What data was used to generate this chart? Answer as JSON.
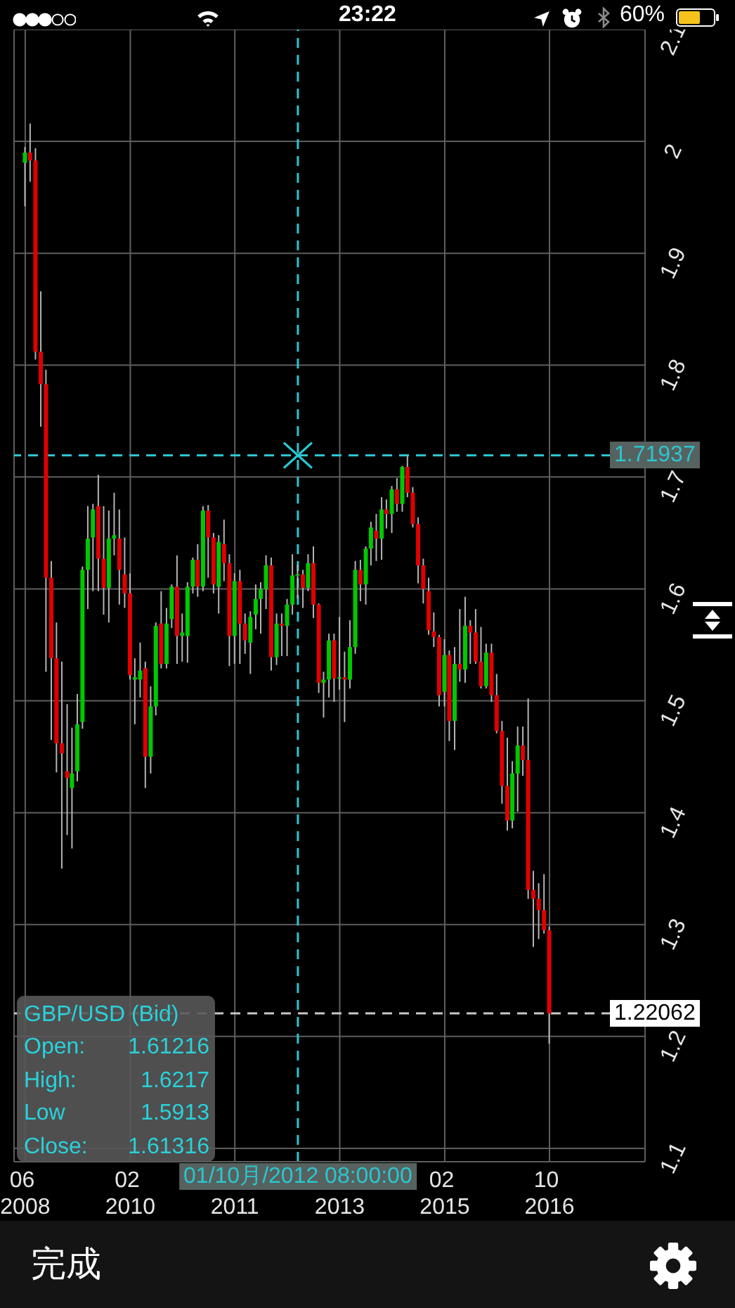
{
  "chart_data": {
    "type": "candlestick",
    "title": "GBP/USD (Bid)",
    "x": [
      "2008-06",
      "2008-07",
      "2008-08",
      "2008-09",
      "2008-10",
      "2008-11",
      "2008-12",
      "2009-01",
      "2009-02",
      "2009-03",
      "2009-04",
      "2009-05",
      "2009-06",
      "2009-07",
      "2009-08",
      "2009-09",
      "2009-10",
      "2009-11",
      "2009-12",
      "2010-01",
      "2010-02",
      "2010-03",
      "2010-04",
      "2010-05",
      "2010-06",
      "2010-07",
      "2010-08",
      "2010-09",
      "2010-10",
      "2010-11",
      "2010-12",
      "2011-01",
      "2011-02",
      "2011-03",
      "2011-04",
      "2011-05",
      "2011-06",
      "2011-07",
      "2011-08",
      "2011-09",
      "2011-10",
      "2011-11",
      "2011-12",
      "2012-01",
      "2012-02",
      "2012-03",
      "2012-04",
      "2012-05",
      "2012-06",
      "2012-07",
      "2012-08",
      "2012-09",
      "2012-10",
      "2012-11",
      "2012-12",
      "2013-01",
      "2013-02",
      "2013-03",
      "2013-04",
      "2013-05",
      "2013-06",
      "2013-07",
      "2013-08",
      "2013-09",
      "2013-10",
      "2013-11",
      "2013-12",
      "2014-01",
      "2014-02",
      "2014-03",
      "2014-04",
      "2014-05",
      "2014-06",
      "2014-07",
      "2014-08",
      "2014-09",
      "2014-10",
      "2014-11",
      "2014-12",
      "2015-01",
      "2015-02",
      "2015-03",
      "2015-04",
      "2015-05",
      "2015-06",
      "2015-07",
      "2015-08",
      "2015-09",
      "2015-10",
      "2015-11",
      "2015-12",
      "2016-01",
      "2016-02",
      "2016-03",
      "2016-04",
      "2016-05",
      "2016-06",
      "2016-07",
      "2016-08",
      "2016-09",
      "2016-10"
    ],
    "ohlc": [
      [
        1.981,
        1.995,
        1.942,
        1.99
      ],
      [
        1.99,
        2.016,
        1.964,
        1.983
      ],
      [
        1.983,
        1.994,
        1.805,
        1.812
      ],
      [
        1.812,
        1.866,
        1.745,
        1.783
      ],
      [
        1.783,
        1.796,
        1.526,
        1.61
      ],
      [
        1.61,
        1.625,
        1.465,
        1.538
      ],
      [
        1.538,
        1.57,
        1.436,
        1.462
      ],
      [
        1.462,
        1.535,
        1.35,
        1.453
      ],
      [
        1.437,
        1.497,
        1.38,
        1.431
      ],
      [
        1.422,
        1.476,
        1.368,
        1.435
      ],
      [
        1.437,
        1.506,
        1.428,
        1.479
      ],
      [
        1.481,
        1.62,
        1.475,
        1.617
      ],
      [
        1.617,
        1.674,
        1.582,
        1.645
      ],
      [
        1.646,
        1.676,
        1.598,
        1.671
      ],
      [
        1.674,
        1.702,
        1.598,
        1.627
      ],
      [
        1.627,
        1.674,
        1.577,
        1.601
      ],
      [
        1.601,
        1.67,
        1.57,
        1.645
      ],
      [
        1.645,
        1.686,
        1.63,
        1.648
      ],
      [
        1.645,
        1.671,
        1.586,
        1.617
      ],
      [
        1.613,
        1.646,
        1.583,
        1.596
      ],
      [
        1.596,
        1.614,
        1.519,
        1.523
      ],
      [
        1.519,
        1.538,
        1.479,
        1.521
      ],
      [
        1.519,
        1.552,
        1.503,
        1.527
      ],
      [
        1.529,
        1.535,
        1.422,
        1.45
      ],
      [
        1.45,
        1.513,
        1.435,
        1.495
      ],
      [
        1.495,
        1.57,
        1.487,
        1.567
      ],
      [
        1.569,
        1.598,
        1.529,
        1.533
      ],
      [
        1.533,
        1.583,
        1.529,
        1.569
      ],
      [
        1.573,
        1.604,
        1.565,
        1.602
      ],
      [
        1.602,
        1.63,
        1.533,
        1.558
      ],
      [
        1.558,
        1.578,
        1.535,
        1.561
      ],
      [
        1.558,
        1.606,
        1.534,
        1.602
      ],
      [
        1.602,
        1.628,
        1.596,
        1.626
      ],
      [
        1.626,
        1.64,
        1.593,
        1.602
      ],
      [
        1.602,
        1.674,
        1.598,
        1.67
      ],
      [
        1.67,
        1.675,
        1.61,
        1.646
      ],
      [
        1.646,
        1.65,
        1.596,
        1.604
      ],
      [
        1.602,
        1.648,
        1.578,
        1.642
      ],
      [
        1.64,
        1.662,
        1.607,
        1.623
      ],
      [
        1.623,
        1.631,
        1.531,
        1.558
      ],
      [
        1.558,
        1.614,
        1.533,
        1.607
      ],
      [
        1.607,
        1.617,
        1.533,
        1.569
      ],
      [
        1.569,
        1.578,
        1.542,
        1.554
      ],
      [
        1.552,
        1.58,
        1.524,
        1.575
      ],
      [
        1.577,
        1.604,
        1.564,
        1.591
      ],
      [
        1.591,
        1.606,
        1.56,
        1.6
      ],
      [
        1.6,
        1.63,
        1.582,
        1.621
      ],
      [
        1.621,
        1.628,
        1.527,
        1.539
      ],
      [
        1.539,
        1.578,
        1.532,
        1.569
      ],
      [
        1.569,
        1.578,
        1.54,
        1.567
      ],
      [
        1.567,
        1.591,
        1.54,
        1.586
      ],
      [
        1.586,
        1.631,
        1.577,
        1.612
      ],
      [
        1.61216,
        1.6217,
        1.5913,
        1.61316
      ],
      [
        1.613,
        1.617,
        1.583,
        1.601
      ],
      [
        1.601,
        1.631,
        1.598,
        1.623
      ],
      [
        1.623,
        1.638,
        1.574,
        1.586
      ],
      [
        1.586,
        1.587,
        1.507,
        1.516
      ],
      [
        1.516,
        1.526,
        1.485,
        1.519
      ],
      [
        1.519,
        1.56,
        1.503,
        1.554
      ],
      [
        1.554,
        1.56,
        1.499,
        1.52
      ],
      [
        1.52,
        1.575,
        1.51,
        1.521
      ],
      [
        1.521,
        1.544,
        1.481,
        1.519
      ],
      [
        1.519,
        1.572,
        1.511,
        1.548
      ],
      [
        1.548,
        1.625,
        1.542,
        1.617
      ],
      [
        1.617,
        1.626,
        1.589,
        1.604
      ],
      [
        1.604,
        1.638,
        1.586,
        1.636
      ],
      [
        1.636,
        1.66,
        1.621,
        1.655
      ],
      [
        1.652,
        1.667,
        1.625,
        1.645
      ],
      [
        1.645,
        1.682,
        1.626,
        1.671
      ],
      [
        1.671,
        1.68,
        1.654,
        1.667
      ],
      [
        1.667,
        1.692,
        1.65,
        1.689
      ],
      [
        1.689,
        1.699,
        1.669,
        1.676
      ],
      [
        1.676,
        1.71,
        1.669,
        1.709
      ],
      [
        1.709,
        1.719,
        1.682,
        1.686
      ],
      [
        1.686,
        1.691,
        1.655,
        1.658
      ],
      [
        1.658,
        1.664,
        1.605,
        1.621
      ],
      [
        1.621,
        1.627,
        1.587,
        1.6
      ],
      [
        1.598,
        1.61,
        1.559,
        1.563
      ],
      [
        1.562,
        1.579,
        1.548,
        1.557
      ],
      [
        1.557,
        1.559,
        1.495,
        1.505
      ],
      [
        1.508,
        1.555,
        1.495,
        1.541
      ],
      [
        1.541,
        1.545,
        1.464,
        1.482
      ],
      [
        1.482,
        1.548,
        1.456,
        1.533
      ],
      [
        1.533,
        1.582,
        1.517,
        1.528
      ],
      [
        1.528,
        1.593,
        1.516,
        1.567
      ],
      [
        1.567,
        1.572,
        1.533,
        1.561
      ],
      [
        1.561,
        1.582,
        1.533,
        1.535
      ],
      [
        1.535,
        1.566,
        1.511,
        1.513
      ],
      [
        1.513,
        1.551,
        1.511,
        1.543
      ],
      [
        1.543,
        1.551,
        1.499,
        1.505
      ],
      [
        1.505,
        1.524,
        1.471,
        1.473
      ],
      [
        1.473,
        1.482,
        1.408,
        1.424
      ],
      [
        1.424,
        1.467,
        1.384,
        1.393
      ],
      [
        1.393,
        1.446,
        1.386,
        1.435
      ],
      [
        1.435,
        1.477,
        1.401,
        1.46
      ],
      [
        1.46,
        1.477,
        1.433,
        1.447
      ],
      [
        1.447,
        1.502,
        1.323,
        1.331
      ],
      [
        1.331,
        1.348,
        1.28,
        1.323
      ],
      [
        1.323,
        1.337,
        1.287,
        1.313
      ],
      [
        1.313,
        1.345,
        1.292,
        1.295
      ],
      [
        1.295,
        1.298,
        1.1935,
        1.22062
      ]
    ],
    "colors": [
      "#00c800",
      "#e00000",
      "#e00000",
      "#e00000",
      "#e00000",
      "#e00000",
      "#e00000",
      "#e00000",
      "#e00000",
      "#00c800",
      "#00c800",
      "#00c800",
      "#00c800",
      "#00c800",
      "#e00000",
      "#e00000",
      "#00c800",
      "#00c800",
      "#e00000",
      "#e00000",
      "#e00000",
      "#00c800",
      "#00c800",
      "#e00000",
      "#00c800",
      "#00c800",
      "#e00000",
      "#00c800",
      "#00c800",
      "#e00000",
      "#00c800",
      "#00c800",
      "#00c800",
      "#e00000",
      "#00c800",
      "#e00000",
      "#e00000",
      "#00c800",
      "#e00000",
      "#e00000",
      "#00c800",
      "#e00000",
      "#e00000",
      "#00c800",
      "#00c800",
      "#00c800",
      "#00c800",
      "#e00000",
      "#00c800",
      "#e00000",
      "#00c800",
      "#00c800",
      "#00c800",
      "#e00000",
      "#00c800",
      "#e00000",
      "#e00000",
      "#00c800",
      "#00c800",
      "#e00000",
      "#00c800",
      "#e00000",
      "#00c800",
      "#00c800",
      "#e00000",
      "#00c800",
      "#00c800",
      "#e00000",
      "#00c800",
      "#e00000",
      "#00c800",
      "#e00000",
      "#00c800",
      "#e00000",
      "#e00000",
      "#e00000",
      "#e00000",
      "#e00000",
      "#e00000",
      "#e00000",
      "#00c800",
      "#e00000",
      "#00c800",
      "#e00000",
      "#00c800",
      "#e00000",
      "#e00000",
      "#e00000",
      "#00c800",
      "#e00000",
      "#e00000",
      "#e00000",
      "#e00000",
      "#00c800",
      "#00c800",
      "#e00000",
      "#e00000",
      "#e00000",
      "#e00000",
      "#e00000",
      "#e00000"
    ],
    "xlim": [
      "2008-03-28",
      "2018-04-09"
    ],
    "xticks": [
      {
        "value": "2008-06",
        "label": "06\n2008"
      },
      {
        "value": "2010-02",
        "label": "02\n2010"
      },
      {
        "value": "2011-10",
        "label": "2011"
      },
      {
        "value": "2013-06",
        "label": "2013"
      },
      {
        "value": "2015-02",
        "label": "02\n2015"
      },
      {
        "value": "2016-10",
        "label": "10\n2016"
      }
    ],
    "ylim": [
      1.088,
      2.1
    ],
    "yticks": [
      1.1,
      1.2,
      1.3,
      1.4,
      1.5,
      1.6,
      1.7,
      1.8,
      1.9,
      2,
      2.1
    ],
    "grid": true,
    "ref_lines": [
      {
        "axis": "x",
        "value": "2012-10",
        "label": "01/10月/2012 08:00:00",
        "color": "#2cc5cf",
        "line_style": "dashed"
      },
      {
        "axis": "y",
        "value": 1.71937,
        "label": "1.71937",
        "color": "#2cc5cf",
        "line_style": "dashed"
      },
      {
        "axis": "y",
        "value": 1.22062,
        "label": "1.22062",
        "color": "#c8c8c8",
        "line_style": "dashed"
      }
    ],
    "annotations": [
      "23:22",
      "60%",
      "Open:",
      "1.61216",
      "High:",
      "1.6217",
      "Low",
      "1.5913",
      "Close:",
      "1.61316",
      "完成"
    ]
  }
}
